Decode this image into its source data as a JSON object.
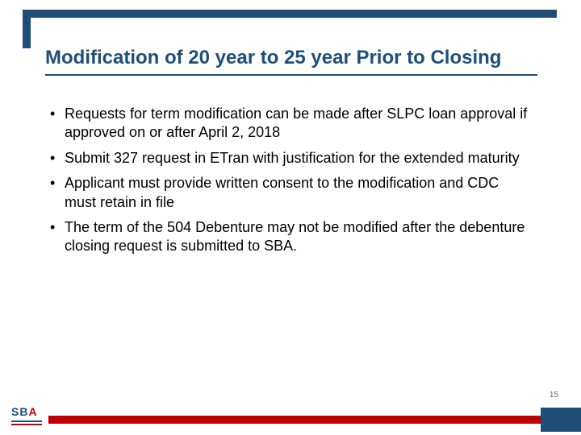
{
  "slide": {
    "title": "Modification of 20 year to 25 year Prior to Closing",
    "title_color": "#1f4e79",
    "title_fontsize": 24,
    "bullets": [
      "Requests for term modification can be made after SLPC loan approval if approved on or after April 2, 2018",
      "Submit 327 request in ETran with justification for the extended maturity",
      "Applicant must provide written consent to the modification and CDC must retain in file",
      "The term of the 504 Debenture may not be modified after the debenture closing request is submitted to SBA."
    ],
    "bullet_color": "#000000",
    "bullet_fontsize": 18,
    "page_number": "15",
    "logo_text_sb": "SB",
    "logo_text_a": "A",
    "accent_blue": "#1f4e79",
    "accent_red": "#c00000",
    "background": "#ffffff"
  }
}
